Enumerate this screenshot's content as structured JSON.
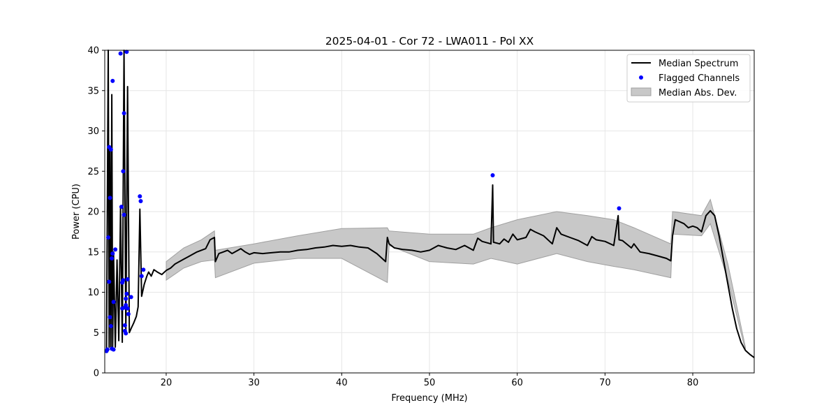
{
  "chart_data": {
    "type": "line",
    "title": "2025-04-01 - Cor 72 - LWA011 - Pol XX",
    "xlabel": "Frequency (MHz)",
    "ylabel": "Power (CPU)",
    "xlim": [
      13,
      87
    ],
    "ylim": [
      0,
      40
    ],
    "x_ticks": [
      20,
      30,
      40,
      50,
      60,
      70,
      80
    ],
    "y_ticks": [
      0,
      5,
      10,
      15,
      20,
      25,
      30,
      35,
      40
    ],
    "grid": true,
    "legend_position": "top-right",
    "legend": [
      "Median Spectrum",
      "Flagged Channels",
      "Median Abs. Dev."
    ],
    "colors": {
      "median": "#000000",
      "flagged": "#0000ff",
      "mad_fill": "#c8c8c8",
      "mad_edge": "#a0a0a0"
    },
    "series": [
      {
        "name": "Median Spectrum",
        "x": [
          13.2,
          13.4,
          13.5,
          13.6,
          13.7,
          13.8,
          13.9,
          14.0,
          14.2,
          14.4,
          14.6,
          14.8,
          15.0,
          15.2,
          15.4,
          15.6,
          15.8,
          16.0,
          16.3,
          16.6,
          16.8,
          17.0,
          17.2,
          17.5,
          17.8,
          18.0,
          18.3,
          18.6,
          19.0,
          19.5,
          20.0,
          20.5,
          21.0,
          21.5,
          22.0,
          22.5,
          23.0,
          23.5,
          24.0,
          24.5,
          25.0,
          25.5,
          25.6,
          26.0,
          26.5,
          27.0,
          27.5,
          28.0,
          28.5,
          29.0,
          29.5,
          30.0,
          31.0,
          32.0,
          33.0,
          34.0,
          35.0,
          36.0,
          37.0,
          38.0,
          39.0,
          40.0,
          41.0,
          42.0,
          43.0,
          44.0,
          45.0,
          45.2,
          45.4,
          46.0,
          47.0,
          48.0,
          49.0,
          50.0,
          51.0,
          52.0,
          53.0,
          54.0,
          55.0,
          55.5,
          56.0,
          57.0,
          57.2,
          57.3,
          58.0,
          58.5,
          59.0,
          59.5,
          60.0,
          61.0,
          61.5,
          62.0,
          63.0,
          64.0,
          64.5,
          65.0,
          66.0,
          67.0,
          68.0,
          68.5,
          69.0,
          70.0,
          71.0,
          71.5,
          71.6,
          72.0,
          73.0,
          73.3,
          74.0,
          75.0,
          76.0,
          77.0,
          77.5,
          77.7,
          78.0,
          79.0,
          79.5,
          80.0,
          80.5,
          81.0,
          81.5,
          82.0,
          82.5,
          83.0,
          83.5,
          84.0,
          84.5,
          85.0,
          85.5,
          86.0,
          86.5,
          87.0
        ],
        "values": [
          2.8,
          40.0,
          3.2,
          28.0,
          3.0,
          34.5,
          3.0,
          15.0,
          3.2,
          14.0,
          4.0,
          20.5,
          3.8,
          40.0,
          4.8,
          35.5,
          5.0,
          5.5,
          6.2,
          7.0,
          8.2,
          20.3,
          9.5,
          11.0,
          12.0,
          12.5,
          12.0,
          12.8,
          12.5,
          12.2,
          12.7,
          13.0,
          13.5,
          13.8,
          14.1,
          14.4,
          14.7,
          15.0,
          15.2,
          15.4,
          16.5,
          16.8,
          13.8,
          14.8,
          15.0,
          15.2,
          14.8,
          15.1,
          15.4,
          15.0,
          14.7,
          14.9,
          14.8,
          14.9,
          15.0,
          15.0,
          15.2,
          15.3,
          15.5,
          15.6,
          15.8,
          15.7,
          15.8,
          15.6,
          15.5,
          14.8,
          13.8,
          16.8,
          16.0,
          15.5,
          15.3,
          15.2,
          15.0,
          15.2,
          15.8,
          15.5,
          15.3,
          15.8,
          15.2,
          16.7,
          16.3,
          16.0,
          23.3,
          16.2,
          16.0,
          16.6,
          16.2,
          17.2,
          16.5,
          16.8,
          17.8,
          17.5,
          17.0,
          16.0,
          18.0,
          17.2,
          16.8,
          16.4,
          15.8,
          16.9,
          16.5,
          16.3,
          15.8,
          19.5,
          16.5,
          16.4,
          15.5,
          16.0,
          15.0,
          14.8,
          14.5,
          14.2,
          13.9,
          17.0,
          19.0,
          18.5,
          18.0,
          18.2,
          18.0,
          17.5,
          19.5,
          20.1,
          19.5,
          17.0,
          14.0,
          11.0,
          8.0,
          5.5,
          3.8,
          2.8,
          2.3,
          1.9
        ]
      },
      {
        "name": "Flagged Channels",
        "x": [
          13.2,
          13.3,
          13.4,
          13.5,
          13.5,
          13.6,
          13.6,
          13.7,
          13.7,
          13.8,
          13.8,
          13.9,
          13.9,
          14.0,
          14.0,
          14.2,
          14.8,
          14.9,
          15.0,
          15.0,
          15.1,
          15.1,
          15.2,
          15.2,
          15.3,
          15.3,
          15.3,
          15.4,
          15.4,
          15.4,
          15.5,
          15.5,
          15.6,
          15.6,
          15.7,
          16.0,
          17.0,
          17.1,
          17.2,
          17.4,
          57.2,
          71.6
        ],
        "y": [
          2.7,
          2.9,
          16.8,
          11.3,
          28.0,
          21.7,
          6.9,
          27.7,
          5.8,
          14.2,
          3.0,
          36.2,
          14.8,
          8.8,
          2.9,
          15.3,
          39.6,
          20.6,
          11.2,
          8.0,
          25.0,
          11.5,
          32.2,
          19.6,
          8.1,
          5.9,
          5.2,
          9.2,
          8.4,
          4.9,
          9.8,
          39.8,
          11.6,
          8.0,
          7.3,
          9.4,
          21.9,
          21.3,
          12.0,
          12.8,
          24.5,
          20.4
        ]
      },
      {
        "name": "Median Abs. Dev.",
        "x": [
          20.0,
          22.0,
          24.0,
          25.5,
          25.6,
          30.0,
          35.0,
          40.0,
          45.2,
          45.4,
          50.0,
          55.0,
          57.0,
          60.0,
          64.5,
          68.0,
          71.0,
          73.3,
          77.5,
          77.7,
          81.0,
          82.0,
          84.0,
          86.0
        ],
        "upper": [
          13.8,
          15.5,
          16.5,
          17.6,
          15.2,
          16.0,
          17.0,
          17.9,
          18.0,
          17.6,
          17.2,
          17.2,
          18.0,
          19.0,
          20.0,
          19.5,
          19.0,
          18.0,
          16.0,
          20.0,
          19.5,
          21.5,
          13.5,
          3.2
        ],
        "lower": [
          11.5,
          13.0,
          13.8,
          14.0,
          11.8,
          13.6,
          14.2,
          14.2,
          11.2,
          15.8,
          13.8,
          13.5,
          14.2,
          13.5,
          14.8,
          13.8,
          13.2,
          12.8,
          11.8,
          17.2,
          17.0,
          18.5,
          11.5,
          2.8
        ]
      }
    ]
  }
}
